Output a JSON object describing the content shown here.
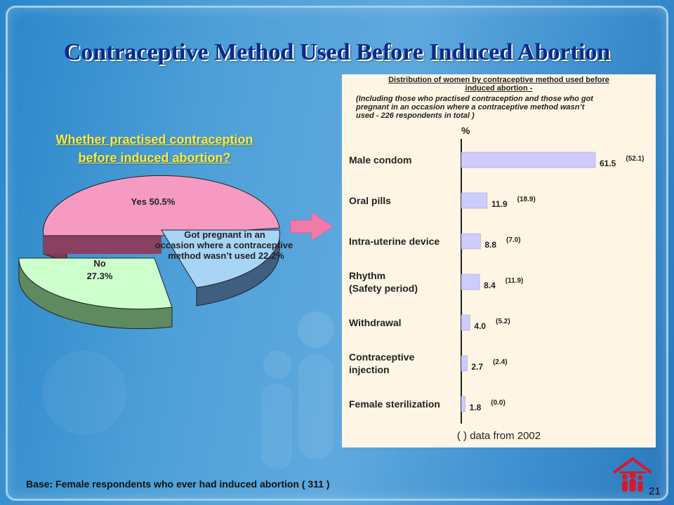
{
  "title": "Contraceptive Method Used Before Induced Abortion",
  "pie": {
    "question_line1": "Whether practised contraception",
    "question_line2": "before induced abortion?",
    "slices": [
      {
        "label": "Yes  50.5%",
        "name": "Yes",
        "value": 50.5,
        "color": "#f79ac2"
      },
      {
        "label_line1": "Got pregnant in an",
        "label_line2": "occasion where a contraceptive",
        "label_line3": "method wasn’t used   22.2%",
        "value": 22.2,
        "color": "#a8d4f6"
      },
      {
        "label_line1": "No",
        "label_line2": "27.3%",
        "value": 27.3,
        "color": "#ccffcc"
      }
    ]
  },
  "panel": {
    "title_line1": "Distribution of women by contraceptive method used before",
    "title_line2": "induced abortion",
    "title_suffix": " -",
    "note_line1": "(Including those who practised contraception and those who got",
    "note_line2": "pregnant in an occasion where a contraceptive method wasn’t",
    "note_line3": "used - 226 respondents in total )",
    "unit": "%",
    "legend_note": "(   )  data from 2002"
  },
  "chart_data": {
    "type": "bar",
    "orientation": "horizontal",
    "categories": [
      "Male condom",
      "Oral pills",
      "Intra-uterine device",
      "Rhythm (Safety period)",
      "Withdrawal",
      "Contraceptive injection",
      "Female sterilization"
    ],
    "category_lines": [
      [
        "Male condom"
      ],
      [
        "Oral pills"
      ],
      [
        "Intra-uterine device"
      ],
      [
        "Rhythm",
        "(Safety period)"
      ],
      [
        "Withdrawal"
      ],
      [
        "Contraceptive",
        "injection"
      ],
      [
        "Female sterilization"
      ]
    ],
    "series": [
      {
        "values": [
          61.5,
          11.9,
          8.8,
          8.4,
          4.0,
          2.7,
          1.8
        ],
        "labels": [
          "61.5",
          "11.9",
          "8.8",
          "8.4",
          "4.0",
          "2.7",
          "1.8"
        ],
        "color": "#ccccff"
      },
      {
        "name": "data from 2002",
        "values": [
          52.1,
          18.9,
          7.0,
          11.9,
          5.2,
          2.4,
          0.0
        ],
        "labels": [
          "(52.1)",
          "(18.9)",
          "(7.0)",
          "(11.9)",
          "(5.2)",
          "(2.4)",
          "(0.0)"
        ]
      }
    ],
    "ylabel": "%",
    "xlim": [
      0,
      61.5
    ],
    "grid": false
  },
  "footer": {
    "base": "Base: Female respondents who ever had induced abortion ( 311 )",
    "page_number": "21"
  },
  "colors": {
    "title": "#0a2a8a",
    "question": "#ffeb3b",
    "panel_bg": "#fff5e4",
    "arrow": "#f27aa8",
    "bar": "#ccccff"
  }
}
